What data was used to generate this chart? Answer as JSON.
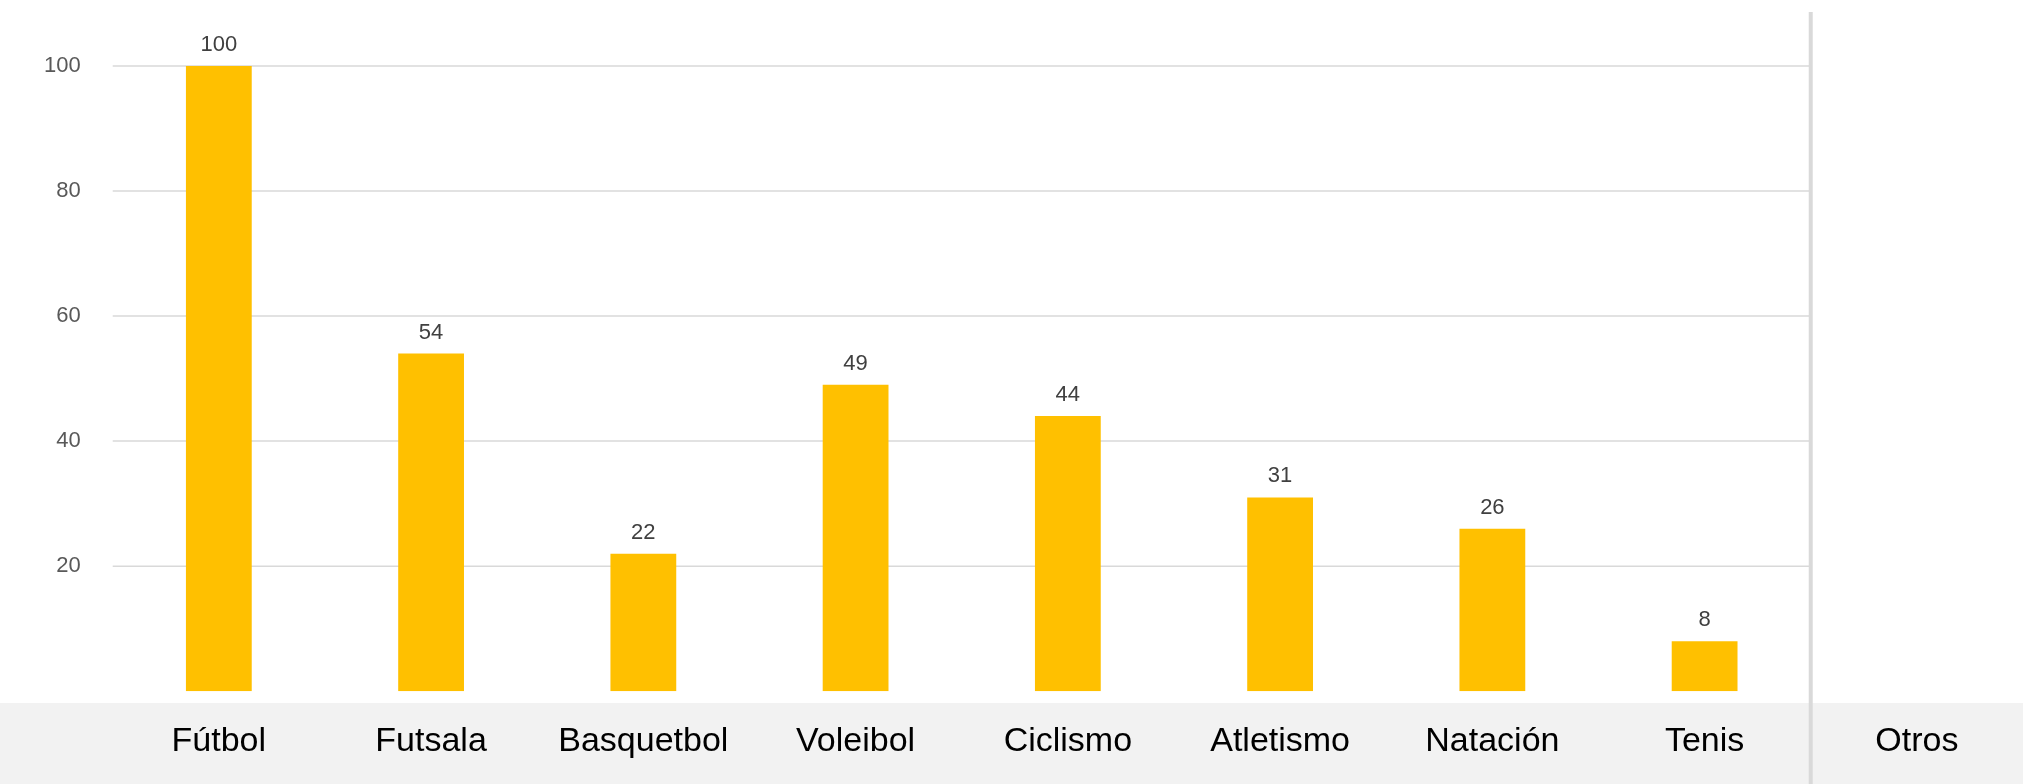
{
  "chart_data": {
    "type": "bar",
    "categories": [
      "Fútbol",
      "Futsala",
      "Basquetbol",
      "Voleibol",
      "Ciclismo",
      "Atletismo",
      "Natación",
      "Tenis",
      "Otros"
    ],
    "values": [
      100,
      54,
      22,
      49,
      44,
      31,
      26,
      8,
      null
    ],
    "color": "#ffc000",
    "ylim": [
      0,
      100
    ],
    "yticks": [
      20,
      40,
      60,
      80,
      100
    ],
    "ref_lines": [
      {
        "axis": "x",
        "value": "Otros",
        "color": "#d9d9d9"
      }
    ],
    "grid": "y",
    "legend": false,
    "data_labels": true
  }
}
